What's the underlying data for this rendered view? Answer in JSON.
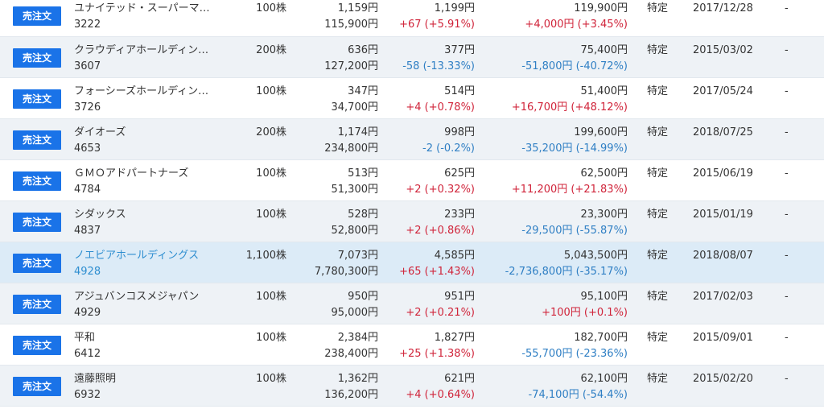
{
  "button_label": "売注文",
  "rows": [
    {
      "name": "ユナイテッド・スーパーマ…",
      "code": "3222",
      "qty": "100株",
      "cost": "1,159円",
      "cost_total": "115,900円",
      "price": "1,199円",
      "change": "+67 (+5.91%)",
      "change_sign": "pos",
      "value": "119,900円",
      "pl": "+4,000円 (+3.45%)",
      "pl_sign": "pos",
      "account": "特定",
      "date": "2017/12/28",
      "extra": "-"
    },
    {
      "name": "クラウディアホールディン…",
      "code": "3607",
      "qty": "200株",
      "cost": "636円",
      "cost_total": "127,200円",
      "price": "377円",
      "change": "-58 (-13.33%)",
      "change_sign": "neg",
      "value": "75,400円",
      "pl": "-51,800円 (-40.72%)",
      "pl_sign": "neg",
      "account": "特定",
      "date": "2015/03/02",
      "extra": "-"
    },
    {
      "name": "フォーシーズホールディン…",
      "code": "3726",
      "qty": "100株",
      "cost": "347円",
      "cost_total": "34,700円",
      "price": "514円",
      "change": "+4 (+0.78%)",
      "change_sign": "pos",
      "value": "51,400円",
      "pl": "+16,700円 (+48.12%)",
      "pl_sign": "pos",
      "account": "特定",
      "date": "2017/05/24",
      "extra": "-"
    },
    {
      "name": "ダイオーズ",
      "code": "4653",
      "qty": "200株",
      "cost": "1,174円",
      "cost_total": "234,800円",
      "price": "998円",
      "change": "-2 (-0.2%)",
      "change_sign": "neg",
      "value": "199,600円",
      "pl": "-35,200円 (-14.99%)",
      "pl_sign": "neg",
      "account": "特定",
      "date": "2018/07/25",
      "extra": "-"
    },
    {
      "name": "ＧＭＯアドパートナーズ",
      "code": "4784",
      "qty": "100株",
      "cost": "513円",
      "cost_total": "51,300円",
      "price": "625円",
      "change": "+2 (+0.32%)",
      "change_sign": "pos",
      "value": "62,500円",
      "pl": "+11,200円 (+21.83%)",
      "pl_sign": "pos",
      "account": "特定",
      "date": "2015/06/19",
      "extra": "-"
    },
    {
      "name": "シダックス",
      "code": "4837",
      "qty": "100株",
      "cost": "528円",
      "cost_total": "52,800円",
      "price": "233円",
      "change": "+2 (+0.86%)",
      "change_sign": "pos",
      "value": "23,300円",
      "pl": "-29,500円 (-55.87%)",
      "pl_sign": "neg",
      "account": "特定",
      "date": "2015/01/19",
      "extra": "-"
    },
    {
      "name": "ノエビアホールディングス",
      "code": "4928",
      "qty": "1,100株",
      "cost": "7,073円",
      "cost_total": "7,780,300円",
      "price": "4,585円",
      "change": "+65 (+1.43%)",
      "change_sign": "pos",
      "value": "5,043,500円",
      "pl": "-2,736,800円 (-35.17%)",
      "pl_sign": "neg",
      "account": "特定",
      "date": "2018/08/07",
      "extra": "-",
      "highlight": true
    },
    {
      "name": "アジュバンコスメジャパン",
      "code": "4929",
      "qty": "100株",
      "cost": "950円",
      "cost_total": "95,000円",
      "price": "951円",
      "change": "+2 (+0.21%)",
      "change_sign": "pos",
      "value": "95,100円",
      "pl": "+100円 (+0.1%)",
      "pl_sign": "pos",
      "account": "特定",
      "date": "2017/02/03",
      "extra": "-"
    },
    {
      "name": "平和",
      "code": "6412",
      "qty": "100株",
      "cost": "2,384円",
      "cost_total": "238,400円",
      "price": "1,827円",
      "change": "+25 (+1.38%)",
      "change_sign": "pos",
      "value": "182,700円",
      "pl": "-55,700円 (-23.36%)",
      "pl_sign": "neg",
      "account": "特定",
      "date": "2015/09/01",
      "extra": "-"
    },
    {
      "name": "遠藤照明",
      "code": "6932",
      "qty": "100株",
      "cost": "1,362円",
      "cost_total": "136,200円",
      "price": "621円",
      "change": "+4 (+0.64%)",
      "change_sign": "pos",
      "value": "62,100円",
      "pl": "-74,100円 (-54.4%)",
      "pl_sign": "neg",
      "account": "特定",
      "date": "2015/02/20",
      "extra": "-"
    }
  ]
}
